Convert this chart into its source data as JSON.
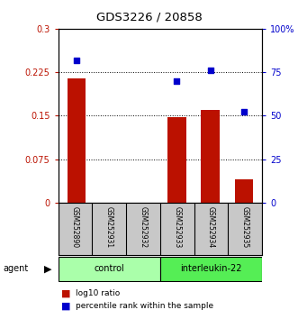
{
  "title": "GDS3226 / 20858",
  "samples": [
    "GSM252890",
    "GSM252931",
    "GSM252932",
    "GSM252933",
    "GSM252934",
    "GSM252935"
  ],
  "log10_ratio": [
    0.215,
    0.0,
    0.0,
    0.148,
    0.16,
    0.04
  ],
  "percentile_rank": [
    82,
    null,
    null,
    70,
    76,
    52
  ],
  "groups": [
    {
      "label": "control",
      "start": 0,
      "end": 2,
      "color": "#aaffaa"
    },
    {
      "label": "interleukin-22",
      "start": 3,
      "end": 5,
      "color": "#55ee55"
    }
  ],
  "bar_color": "#bb1100",
  "dot_color": "#0000cc",
  "ylim_left": [
    0,
    0.3
  ],
  "ylim_right": [
    0,
    100
  ],
  "yticks_left": [
    0,
    0.075,
    0.15,
    0.225,
    0.3
  ],
  "ytick_labels_left": [
    "0",
    "0.075",
    "0.15",
    "0.225",
    "0.3"
  ],
  "yticks_right": [
    0,
    25,
    50,
    75,
    100
  ],
  "ytick_labels_right": [
    "0",
    "25",
    "50",
    "75",
    "100%"
  ],
  "agent_label": "agent",
  "legend_bar_label": "log10 ratio",
  "legend_dot_label": "percentile rank within the sample",
  "background_color": "#ffffff",
  "plot_bg_color": "#ffffff",
  "label_area_color": "#c8c8c8",
  "figsize": [
    3.31,
    3.54
  ],
  "dpi": 100
}
